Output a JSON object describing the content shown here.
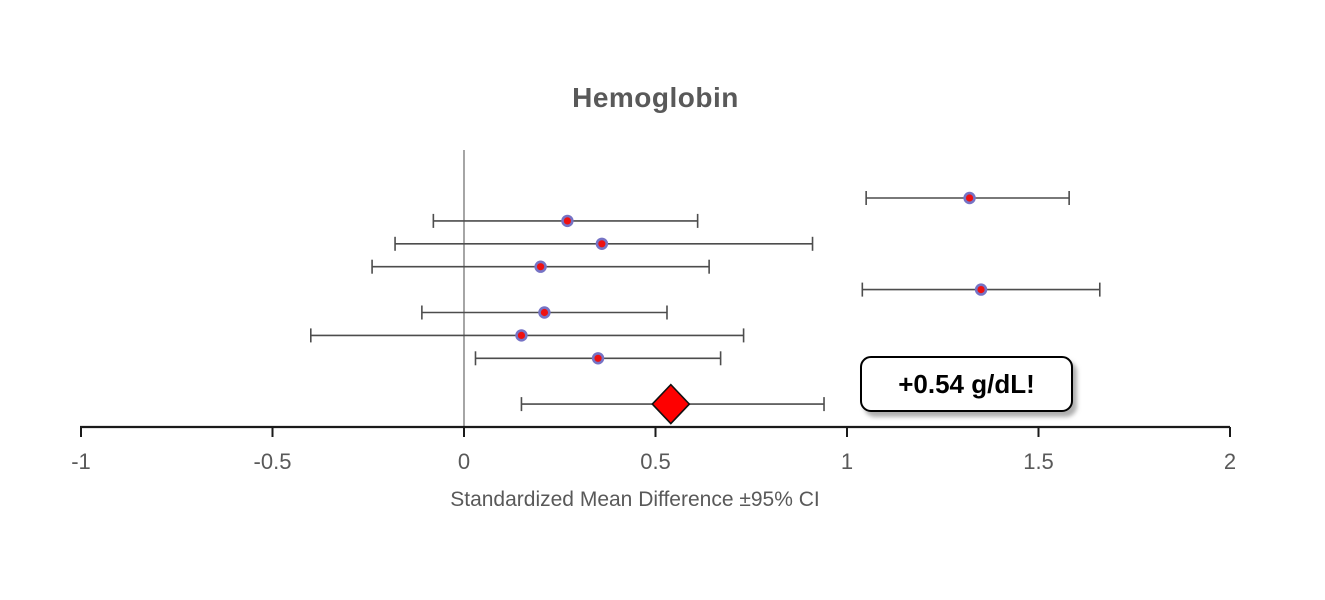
{
  "chart_data": {
    "type": "scatter",
    "variant": "forest-plot",
    "title": "Hemoglobin",
    "xlabel": "Standardized Mean Difference ±95% CI",
    "xlim": [
      -1,
      2
    ],
    "grid": false,
    "zero_reference_line": 0,
    "xticks": [
      {
        "value": -1,
        "label": "-1"
      },
      {
        "value": -0.5,
        "label": "-0.5"
      },
      {
        "value": 0,
        "label": "0"
      },
      {
        "value": 0.5,
        "label": "0.5"
      },
      {
        "value": 1,
        "label": "1"
      },
      {
        "value": 1.5,
        "label": "1.5"
      },
      {
        "value": 2,
        "label": "2"
      }
    ],
    "studies": [
      {
        "mean": 1.32,
        "ci_low": 1.05,
        "ci_high": 1.58
      },
      {
        "mean": 0.27,
        "ci_low": -0.08,
        "ci_high": 0.61
      },
      {
        "mean": 0.36,
        "ci_low": -0.18,
        "ci_high": 0.91
      },
      {
        "mean": 0.2,
        "ci_low": -0.24,
        "ci_high": 0.64
      },
      {
        "mean": 1.35,
        "ci_low": 1.04,
        "ci_high": 1.66
      },
      {
        "mean": 0.21,
        "ci_low": -0.11,
        "ci_high": 0.53
      },
      {
        "mean": 0.15,
        "ci_low": -0.4,
        "ci_high": 0.73
      },
      {
        "mean": 0.35,
        "ci_low": 0.03,
        "ci_high": 0.67
      }
    ],
    "summary": {
      "mean": 0.54,
      "ci_low": 0.15,
      "ci_high": 0.94
    },
    "annotation": {
      "text": "+0.54 g/dL!"
    },
    "colors": {
      "marker_fill": "#ee1111",
      "marker_ring": "#7673c5",
      "diamond_fill": "#fe0000",
      "diamond_border": "#111111",
      "error_bar": "#4d4d4d",
      "axis": "#1a1a1a",
      "zero_line": "#7f7f7f",
      "text": "#595959",
      "annotation_text": "#000000"
    }
  }
}
